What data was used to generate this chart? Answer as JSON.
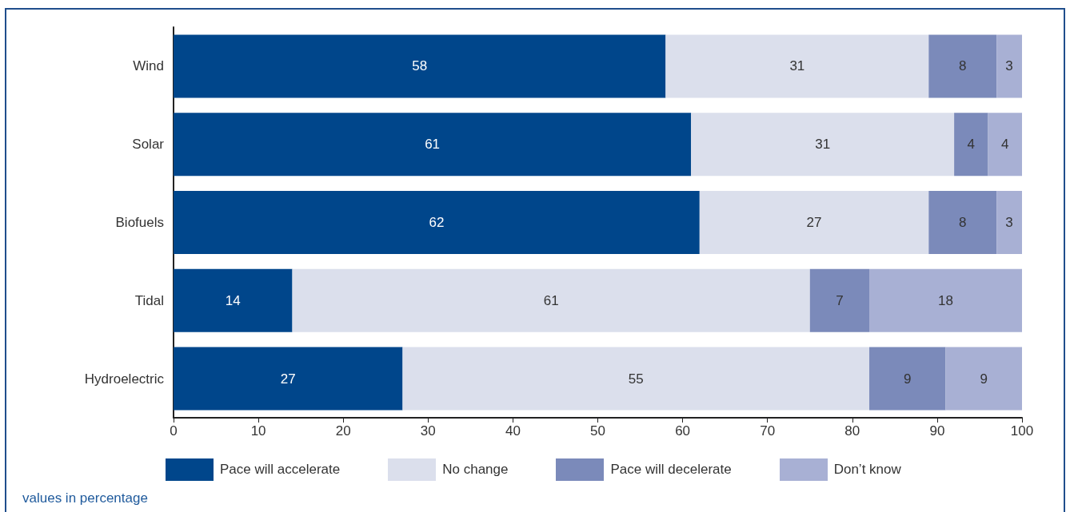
{
  "chart_data": {
    "type": "bar",
    "orientation": "horizontal",
    "stacked": true,
    "categories": [
      "Wind",
      "Solar",
      "Biofuels",
      "Tidal",
      "Hydroelectric"
    ],
    "series": [
      {
        "name": "Pace will accelerate",
        "color": "#00468b",
        "values": [
          58,
          61,
          62,
          14,
          27
        ]
      },
      {
        "name": "No change",
        "color": "#dbdfec",
        "values": [
          31,
          31,
          27,
          61,
          55
        ]
      },
      {
        "name": "Pace will decelerate",
        "color": "#7b8aba",
        "values": [
          8,
          4,
          8,
          7,
          9
        ]
      },
      {
        "name": "Don’t know",
        "color": "#a8b0d4",
        "values": [
          3,
          4,
          3,
          18,
          9
        ]
      }
    ],
    "xlim": [
      0,
      100
    ],
    "xticks": [
      0,
      10,
      20,
      30,
      40,
      50,
      60,
      70,
      80,
      90,
      100
    ],
    "grid": false,
    "legend": "bottom",
    "data_labels": true,
    "annotations": [
      "values in percentage"
    ]
  }
}
